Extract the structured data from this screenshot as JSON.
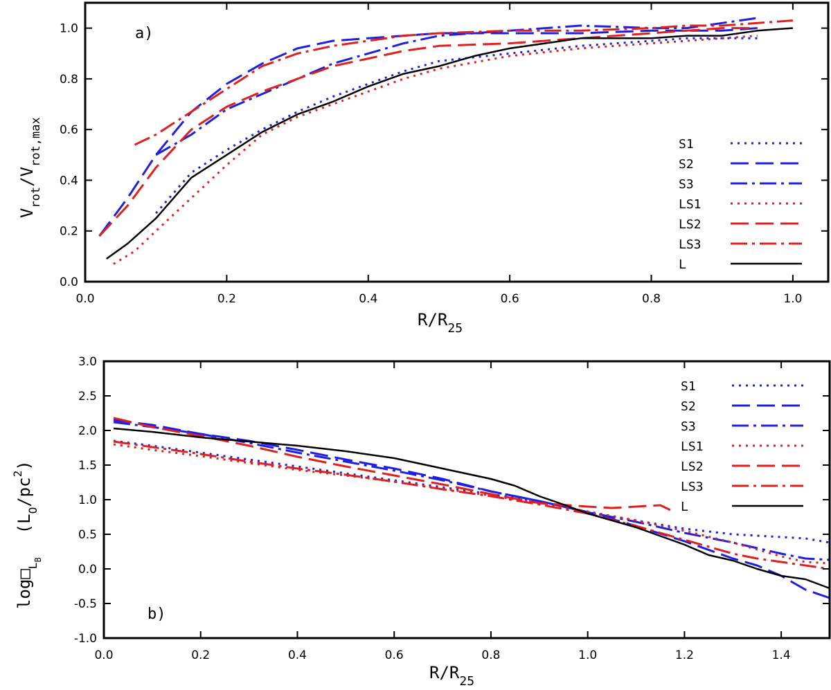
{
  "colors": {
    "S": "#1f1fe0",
    "LS": "#e01f1f",
    "L": "#000000"
  },
  "chart_data": [
    {
      "type": "line",
      "panel_label": "a)",
      "xlabel": {
        "main": "R/R",
        "sub": "25"
      },
      "ylabel": {
        "main": "V",
        "sub1": "rot",
        "mid": "/V",
        "sub2": "rot,max"
      },
      "xlim": [
        0.0,
        1.05
      ],
      "ylim": [
        0.0,
        1.1
      ],
      "xticks": [
        0.0,
        0.2,
        0.4,
        0.6,
        0.8,
        1.0
      ],
      "xtick_labels": [
        "0.0",
        "0.2",
        "0.4",
        "0.6",
        "0.8",
        "1.0"
      ],
      "yticks": [
        0.0,
        0.2,
        0.4,
        0.6,
        0.8,
        1.0
      ],
      "ytick_labels": [
        "0.0",
        "0.2",
        "0.4",
        "0.6",
        "0.8",
        "1.0"
      ],
      "legend_position": "right",
      "series": [
        {
          "name": "S1",
          "color": "#1f1fe0",
          "dash": "dot",
          "x": [
            0.1,
            0.15,
            0.2,
            0.25,
            0.3,
            0.35,
            0.4,
            0.45,
            0.5,
            0.6,
            0.7,
            0.8,
            0.85,
            0.9,
            0.95
          ],
          "y": [
            0.27,
            0.43,
            0.52,
            0.6,
            0.67,
            0.73,
            0.78,
            0.83,
            0.87,
            0.9,
            0.93,
            0.95,
            0.96,
            0.96,
            0.96
          ]
        },
        {
          "name": "S2",
          "color": "#1f1fe0",
          "dash": "longdash",
          "x": [
            0.02,
            0.06,
            0.1,
            0.15,
            0.2,
            0.25,
            0.3,
            0.35,
            0.4,
            0.45,
            0.5,
            0.6,
            0.7,
            0.8,
            0.9,
            0.95
          ],
          "y": [
            0.18,
            0.33,
            0.5,
            0.67,
            0.78,
            0.86,
            0.92,
            0.95,
            0.96,
            0.97,
            0.98,
            0.98,
            0.98,
            0.99,
            0.99,
            1.0
          ]
        },
        {
          "name": "S3",
          "color": "#1f1fe0",
          "dash": "dashdot",
          "x": [
            0.1,
            0.15,
            0.2,
            0.25,
            0.3,
            0.35,
            0.4,
            0.45,
            0.5,
            0.6,
            0.7,
            0.8,
            0.85,
            0.9,
            0.95
          ],
          "y": [
            0.5,
            0.58,
            0.68,
            0.74,
            0.8,
            0.86,
            0.9,
            0.94,
            0.97,
            0.99,
            1.01,
            1.0,
            1.0,
            1.02,
            1.04
          ]
        },
        {
          "name": "LS1",
          "color": "#e01f1f",
          "dash": "dot",
          "x": [
            0.04,
            0.07,
            0.1,
            0.15,
            0.2,
            0.25,
            0.3,
            0.35,
            0.4,
            0.45,
            0.5,
            0.6,
            0.7,
            0.8,
            0.85,
            0.9,
            0.95
          ],
          "y": [
            0.07,
            0.12,
            0.2,
            0.33,
            0.46,
            0.58,
            0.65,
            0.7,
            0.75,
            0.8,
            0.84,
            0.89,
            0.92,
            0.94,
            0.95,
            0.96,
            0.97
          ]
        },
        {
          "name": "LS2",
          "color": "#e01f1f",
          "dash": "longdash",
          "x": [
            0.02,
            0.06,
            0.1,
            0.15,
            0.2,
            0.25,
            0.3,
            0.35,
            0.4,
            0.45,
            0.5,
            0.6,
            0.7,
            0.8,
            0.9,
            0.95
          ],
          "y": [
            0.18,
            0.3,
            0.45,
            0.6,
            0.69,
            0.75,
            0.8,
            0.85,
            0.88,
            0.91,
            0.93,
            0.94,
            0.96,
            0.98,
            1.0,
            1.0
          ]
        },
        {
          "name": "LS3",
          "color": "#e01f1f",
          "dash": "dashdot",
          "x": [
            0.07,
            0.1,
            0.15,
            0.2,
            0.25,
            0.3,
            0.35,
            0.4,
            0.45,
            0.5,
            0.6,
            0.7,
            0.8,
            0.85,
            0.9,
            0.95,
            1.0
          ],
          "y": [
            0.54,
            0.58,
            0.67,
            0.76,
            0.85,
            0.9,
            0.93,
            0.95,
            0.97,
            0.98,
            0.99,
            0.99,
            1.0,
            1.01,
            1.01,
            1.02,
            1.03
          ]
        },
        {
          "name": "L",
          "color": "#000000",
          "dash": "solid",
          "x": [
            0.03,
            0.06,
            0.1,
            0.15,
            0.2,
            0.25,
            0.3,
            0.35,
            0.4,
            0.45,
            0.5,
            0.55,
            0.6,
            0.65,
            0.7,
            0.75,
            0.8,
            0.85,
            0.9,
            0.95,
            1.0
          ],
          "y": [
            0.09,
            0.15,
            0.25,
            0.41,
            0.5,
            0.59,
            0.66,
            0.71,
            0.77,
            0.82,
            0.85,
            0.89,
            0.92,
            0.94,
            0.96,
            0.96,
            0.96,
            0.97,
            0.97,
            0.99,
            1.0
          ]
        }
      ]
    },
    {
      "type": "line",
      "panel_label": "b)",
      "xlabel": {
        "main": "R/R",
        "sub": "25"
      },
      "ylabel": {
        "main": "log",
        "sub1": "L",
        "sub1b": "B",
        "unit": "(L",
        "unit_sub": "O",
        "unit_mid": "/pc",
        "unit_sup": "2",
        "unit_end": ")"
      },
      "xlim": [
        0.0,
        1.5
      ],
      "ylim": [
        -1.0,
        3.0
      ],
      "xticks": [
        0.0,
        0.2,
        0.4,
        0.6,
        0.8,
        1.0,
        1.2,
        1.4
      ],
      "xtick_labels": [
        "0.0",
        "0.2",
        "0.4",
        "0.6",
        "0.8",
        "1.0",
        "1.2",
        "1.4"
      ],
      "yticks": [
        -1.0,
        -0.5,
        0.0,
        0.5,
        1.0,
        1.5,
        2.0,
        2.5,
        3.0
      ],
      "ytick_labels": [
        "-1.0",
        "-0.5",
        "0.0",
        "0.5",
        "1.0",
        "1.5",
        "2.0",
        "2.5",
        "3.0"
      ],
      "legend_position": "top-right",
      "series": [
        {
          "name": "S1",
          "color": "#1f1fe0",
          "dash": "dot",
          "x": [
            0.02,
            0.1,
            0.2,
            0.3,
            0.4,
            0.5,
            0.6,
            0.7,
            0.8,
            0.9,
            1.0,
            1.1,
            1.2,
            1.3,
            1.35,
            1.4,
            1.45,
            1.5
          ],
          "y": [
            1.85,
            1.78,
            1.68,
            1.58,
            1.48,
            1.38,
            1.28,
            1.18,
            1.08,
            0.97,
            0.82,
            0.7,
            0.58,
            0.5,
            0.48,
            0.46,
            0.44,
            0.38
          ]
        },
        {
          "name": "S2",
          "color": "#1f1fe0",
          "dash": "longdash",
          "x": [
            0.02,
            0.1,
            0.2,
            0.3,
            0.4,
            0.5,
            0.6,
            0.7,
            0.8,
            0.9,
            1.0,
            1.1,
            1.2,
            1.3,
            1.35,
            1.4,
            1.45,
            1.5
          ],
          "y": [
            2.15,
            2.08,
            1.95,
            1.85,
            1.72,
            1.58,
            1.45,
            1.3,
            1.12,
            0.98,
            0.82,
            0.62,
            0.4,
            0.15,
            0.05,
            -0.1,
            -0.3,
            -0.42
          ]
        },
        {
          "name": "S3",
          "color": "#1f1fe0",
          "dash": "dashdot",
          "x": [
            0.02,
            0.1,
            0.2,
            0.3,
            0.4,
            0.5,
            0.6,
            0.7,
            0.8,
            0.9,
            1.0,
            1.1,
            1.2,
            1.3,
            1.35,
            1.4,
            1.45,
            1.5
          ],
          "y": [
            2.12,
            2.05,
            1.95,
            1.82,
            1.68,
            1.55,
            1.42,
            1.28,
            1.12,
            0.98,
            0.82,
            0.68,
            0.52,
            0.38,
            0.3,
            0.22,
            0.15,
            0.13
          ]
        },
        {
          "name": "LS1",
          "color": "#e01f1f",
          "dash": "dot",
          "x": [
            0.02,
            0.1,
            0.2,
            0.3,
            0.4,
            0.5,
            0.6,
            0.7,
            0.8,
            0.9,
            1.0,
            1.1,
            1.2,
            1.3,
            1.35,
            1.4,
            1.45,
            1.5
          ],
          "y": [
            1.8,
            1.72,
            1.63,
            1.53,
            1.43,
            1.35,
            1.26,
            1.16,
            1.06,
            0.95,
            0.83,
            0.7,
            0.55,
            0.38,
            0.28,
            0.18,
            0.1,
            0.08
          ]
        },
        {
          "name": "LS2",
          "color": "#e01f1f",
          "dash": "longdash",
          "x": [
            0.02,
            0.1,
            0.2,
            0.3,
            0.4,
            0.5,
            0.6,
            0.7,
            0.8,
            0.9,
            1.0,
            1.05,
            1.1,
            1.15,
            1.18
          ],
          "y": [
            2.18,
            2.05,
            1.92,
            1.78,
            1.62,
            1.48,
            1.35,
            1.22,
            1.08,
            0.95,
            0.9,
            0.88,
            0.9,
            0.92,
            0.82
          ]
        },
        {
          "name": "LS3",
          "color": "#e01f1f",
          "dash": "dashdot",
          "x": [
            0.02,
            0.1,
            0.2,
            0.3,
            0.4,
            0.5,
            0.6,
            0.7,
            0.8,
            0.9,
            1.0,
            1.1,
            1.2,
            1.3,
            1.35,
            1.4,
            1.45,
            1.5
          ],
          "y": [
            1.84,
            1.76,
            1.66,
            1.55,
            1.45,
            1.36,
            1.26,
            1.15,
            1.05,
            0.93,
            0.8,
            0.62,
            0.42,
            0.22,
            0.15,
            0.1,
            0.05,
            0.0
          ]
        },
        {
          "name": "L",
          "color": "#000000",
          "dash": "solid",
          "x": [
            0.02,
            0.1,
            0.2,
            0.3,
            0.4,
            0.5,
            0.6,
            0.7,
            0.8,
            0.85,
            0.9,
            0.95,
            1.0,
            1.1,
            1.2,
            1.25,
            1.3,
            1.35,
            1.4,
            1.45,
            1.5
          ],
          "y": [
            2.03,
            1.98,
            1.9,
            1.84,
            1.78,
            1.7,
            1.6,
            1.45,
            1.3,
            1.2,
            1.05,
            0.93,
            0.8,
            0.6,
            0.35,
            0.2,
            0.12,
            0.0,
            -0.1,
            -0.15,
            -0.28
          ]
        }
      ]
    }
  ]
}
